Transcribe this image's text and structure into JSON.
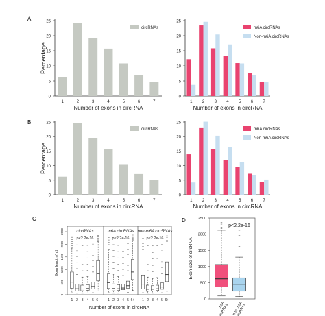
{
  "colors": {
    "gray": "#c5c9c2",
    "gray_stroke": "#b3b8af",
    "pink": "#e9436f",
    "lightblue": "#c6def0",
    "box_pink": "#f0507c",
    "box_blue": "#a9d4ee"
  },
  "panel_labels": {
    "A": "A",
    "B": "B",
    "C": "C",
    "D": "D"
  },
  "chart_data": [
    {
      "id": "A-left",
      "type": "bar",
      "categories": [
        "1",
        "2",
        "3",
        "4",
        "5",
        "6",
        "7"
      ],
      "series": [
        {
          "name": "circRNAs",
          "values": [
            6.2,
            24.1,
            19.2,
            15.7,
            10.8,
            7.0,
            4.6
          ]
        }
      ],
      "xlabel": "Number of exons in circRNA",
      "ylabel": "Percentage",
      "ylim": [
        0,
        25
      ],
      "yticks": [
        "0",
        "5",
        "10",
        "15",
        "20",
        "25"
      ],
      "legend": "top-right",
      "grid": false
    },
    {
      "id": "A-right",
      "type": "bar",
      "categories": [
        "1",
        "2",
        "3",
        "4",
        "5",
        "6",
        "7"
      ],
      "series": [
        {
          "name": "m6A circRNAs",
          "values": [
            12.2,
            23.4,
            15.8,
            13.3,
            10.9,
            7.7,
            4.6
          ]
        },
        {
          "name": "Non-m6A circRNAs",
          "values": [
            3.7,
            24.6,
            20.4,
            17.1,
            10.8,
            6.9,
            4.7
          ]
        }
      ],
      "xlabel": "Number of exons in circRNA",
      "ylabel": "",
      "ylim": [
        0,
        25
      ],
      "yticks": [
        "0",
        "5",
        "10",
        "15",
        "20",
        "25"
      ],
      "legend": "top-right",
      "grid": false
    },
    {
      "id": "B-left",
      "type": "bar",
      "categories": [
        "1",
        "2",
        "3",
        "4",
        "5",
        "6",
        "7"
      ],
      "series": [
        {
          "name": "circRNAs",
          "values": [
            6.2,
            24.7,
            19.5,
            15.8,
            10.5,
            7.1,
            5.0
          ]
        }
      ],
      "xlabel": "Number of exons in circRNA",
      "ylabel": "Percentage",
      "ylim": [
        0,
        25
      ],
      "yticks": [
        "0",
        "5",
        "10",
        "15",
        "20",
        "25"
      ],
      "legend": "top-right",
      "grid": false
    },
    {
      "id": "B-right",
      "type": "bar",
      "categories": [
        "1",
        "2",
        "3",
        "4",
        "5",
        "6",
        "7"
      ],
      "series": [
        {
          "name": "m6A circRNAs",
          "values": [
            13.9,
            22.9,
            15.7,
            11.9,
            9.5,
            7.2,
            4.3
          ]
        },
        {
          "name": "Non-m6A circRNAs",
          "values": [
            4.2,
            25.1,
            20.3,
            16.4,
            11.2,
            6.6,
            5.2
          ]
        }
      ],
      "xlabel": "Number of exons in circRNA",
      "ylabel": "",
      "ylim": [
        0,
        25
      ],
      "yticks": [
        "0",
        "5",
        "10",
        "15",
        "20",
        "25"
      ],
      "legend": "top-right",
      "grid": false
    },
    {
      "id": "C",
      "type": "box",
      "ylabel": "Exon length (nt)",
      "ylim": [
        0,
        2500
      ],
      "yticks": [
        "0",
        "500",
        "1000",
        "1500",
        "2000",
        "2500"
      ],
      "xlabel": "Number of exons in circRNA",
      "categories": [
        "1",
        "2",
        "3",
        "4",
        "5",
        "6+"
      ],
      "subpanels": [
        {
          "title": "circRNAs",
          "pvalue": "p<2.2e-16",
          "boxes": [
            [
              80,
              260,
              500,
              900,
              1850
            ],
            [
              60,
              150,
              240,
              420,
              800
            ],
            [
              60,
              160,
              230,
              380,
              700
            ],
            [
              70,
              180,
              250,
              400,
              720
            ],
            [
              80,
              230,
              330,
              500,
              900
            ],
            [
              150,
              550,
              850,
              1350,
              2100
            ]
          ]
        },
        {
          "title": "m6A circRNAs",
          "pvalue": "p<2.2e-16",
          "boxes": [
            [
              80,
              250,
              480,
              850,
              1800
            ],
            [
              60,
              160,
              250,
              430,
              820
            ],
            [
              60,
              170,
              240,
              400,
              720
            ],
            [
              70,
              200,
              270,
              420,
              760
            ],
            [
              90,
              260,
              360,
              540,
              950
            ],
            [
              170,
              600,
              900,
              1400,
              2150
            ]
          ]
        },
        {
          "title": "non-m6A circRNAs",
          "pvalue": "p<2.2e-16",
          "boxes": [
            [
              80,
              230,
              420,
              780,
              1700
            ],
            [
              60,
              140,
              220,
              380,
              700
            ],
            [
              60,
              150,
              220,
              360,
              650
            ],
            [
              70,
              170,
              240,
              380,
              680
            ],
            [
              80,
              220,
              310,
              470,
              850
            ],
            [
              140,
              520,
              800,
              1300,
              2050
            ]
          ]
        }
      ]
    },
    {
      "id": "D",
      "type": "box",
      "ylabel": "Exon size of circRNA",
      "ylim": [
        0,
        2500
      ],
      "yticks": [
        "0",
        "500",
        "1000",
        "1500",
        "2000",
        "2500"
      ],
      "pvalue": "p<2.2e-16",
      "categories": [
        "m6A circRNAs",
        "non-m6A circRNAs"
      ],
      "boxes": [
        [
          90,
          370,
          620,
          1060,
          2120
        ],
        [
          70,
          240,
          450,
          650,
          1290
        ]
      ]
    }
  ]
}
